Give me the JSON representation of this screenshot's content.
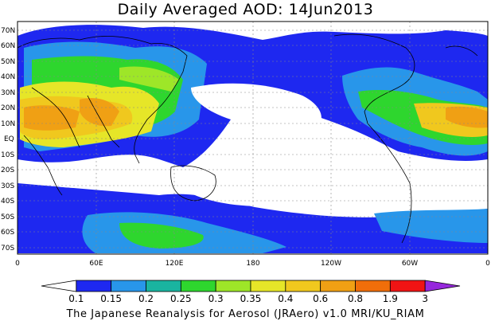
{
  "title": "Daily Averaged AOD: 14Jun2013",
  "credit": "The Japanese Reanalysis for Aerosol (JRAero) v1.0 MRI/KU_RIAM",
  "map": {
    "lat_labels": [
      "70N",
      "60N",
      "50N",
      "40N",
      "30N",
      "20N",
      "10N",
      "EQ",
      "10S",
      "20S",
      "30S",
      "40S",
      "50S",
      "60S",
      "70S"
    ],
    "lon_labels": [
      "0",
      "60E",
      "120E",
      "180",
      "120W",
      "60W",
      "0"
    ]
  },
  "colorbar": {
    "labels": [
      "0.1",
      "0.15",
      "0.2",
      "0.25",
      "0.3",
      "0.35",
      "0.4",
      "0.6",
      "0.8",
      "1.9",
      "3"
    ],
    "colors": [
      "#ffffff",
      "#1e28f0",
      "#2896ea",
      "#1ab4a0",
      "#2ed62e",
      "#9ee628",
      "#e6e628",
      "#f0c81e",
      "#f0a014",
      "#f06e0a",
      "#f01414",
      "#9628dc"
    ]
  }
}
